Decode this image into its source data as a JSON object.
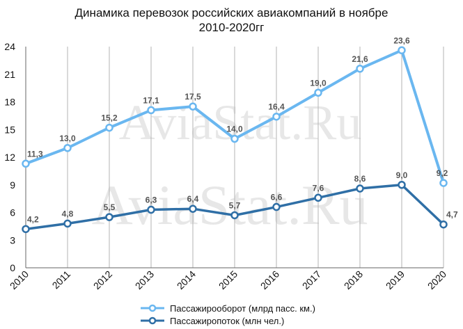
{
  "chart_data": {
    "type": "line",
    "title_lines": [
      "Динамика перевозок российских авиакомпаний в ноябре",
      "2010-2020гг"
    ],
    "categories": [
      "2010",
      "2011",
      "2012",
      "2013",
      "2014",
      "2015",
      "2016",
      "2017",
      "2018",
      "2019",
      "2020"
    ],
    "series": [
      {
        "name": "Пассажирооборот (млрд пасс. км.)",
        "color": "#6ab7f0",
        "values": [
          11.3,
          13.0,
          15.2,
          17.1,
          17.5,
          14.0,
          16.4,
          19.0,
          21.6,
          23.6,
          9.2
        ],
        "labels": [
          "11,3",
          "13,0",
          "15,2",
          "17,1",
          "17,5",
          "14,0",
          "16,4",
          "19,0",
          "21,6",
          "23,6",
          "9,2"
        ]
      },
      {
        "name": "Пассажиропоток (млн чел.)",
        "color": "#2f6fa6",
        "values": [
          4.2,
          4.8,
          5.5,
          6.3,
          6.4,
          5.7,
          6.6,
          7.6,
          8.6,
          9.0,
          4.7
        ],
        "labels": [
          "4,2",
          "4,8",
          "5,5",
          "6,3",
          "6,4",
          "5,7",
          "6,6",
          "7,6",
          "8,6",
          "9,0",
          "4,7"
        ]
      }
    ],
    "ylim": [
      0,
      24
    ],
    "yticks": [
      0,
      3,
      6,
      9,
      12,
      15,
      18,
      21,
      24
    ],
    "grid": "vertical",
    "legend": "bottom",
    "watermark": "AviaStat.Ru"
  }
}
